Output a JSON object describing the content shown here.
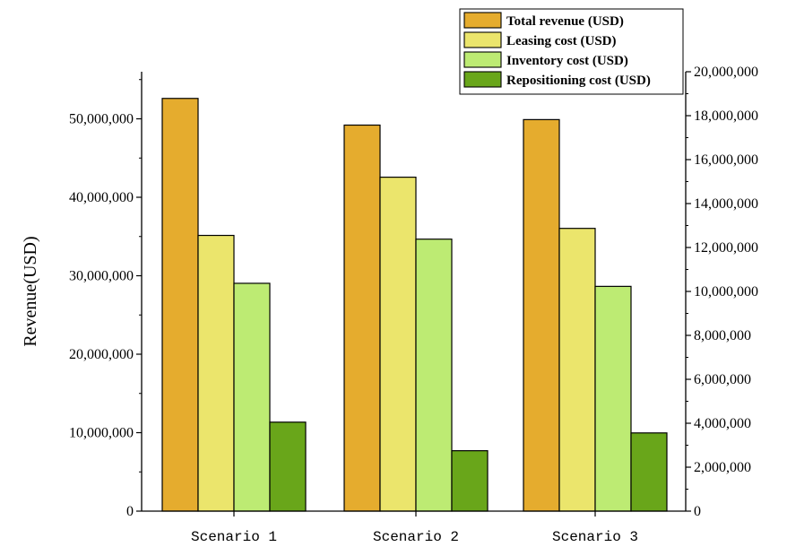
{
  "chart_data": {
    "type": "bar",
    "title": "",
    "xlabel": "",
    "ylabel": "Revenue(USD)",
    "categories": [
      "Scenario 1",
      "Scenario 2",
      "Scenario 3"
    ],
    "ylim": [
      0,
      56000000
    ],
    "y2lim": [
      0,
      20000000
    ],
    "left_ticks": [
      {
        "value": 0,
        "label": "0"
      },
      {
        "value": 10000000,
        "label": "10,000,000"
      },
      {
        "value": 20000000,
        "label": "20,000,000"
      },
      {
        "value": 30000000,
        "label": "30,000,000"
      },
      {
        "value": 40000000,
        "label": "40,000,000"
      },
      {
        "value": 50000000,
        "label": "50,000,000"
      }
    ],
    "right_ticks": [
      {
        "value": 0,
        "label": "0"
      },
      {
        "value": 2000000,
        "label": "2,000,000"
      },
      {
        "value": 4000000,
        "label": "4,000,000"
      },
      {
        "value": 6000000,
        "label": "6,000,000"
      },
      {
        "value": 8000000,
        "label": "8,000,000"
      },
      {
        "value": 10000000,
        "label": "10,000,000"
      },
      {
        "value": 12000000,
        "label": "12,000,000"
      },
      {
        "value": 14000000,
        "label": "14,000,000"
      },
      {
        "value": 16000000,
        "label": "16,000,000"
      },
      {
        "value": 18000000,
        "label": "18,000,000"
      },
      {
        "value": 20000000,
        "label": "20,000,000"
      }
    ],
    "series": [
      {
        "name": "Total revenue (USD)",
        "axis": "left",
        "color": "#E5AC2E",
        "values": [
          52600000,
          49200000,
          49900000
        ]
      },
      {
        "name": "Leasing cost (USD)",
        "axis": "right",
        "color": "#EBE56C",
        "values": [
          12550000,
          15200000,
          12870000
        ]
      },
      {
        "name": "Inventory cost (USD)",
        "axis": "right",
        "color": "#BDEB73",
        "values": [
          10370000,
          12380000,
          10230000
        ]
      },
      {
        "name": "Repositioning cost (USD)",
        "axis": "right",
        "color": "#69A61A",
        "values": [
          4050000,
          2750000,
          3560000
        ]
      }
    ],
    "legend_position": "top-right",
    "grid": false
  }
}
